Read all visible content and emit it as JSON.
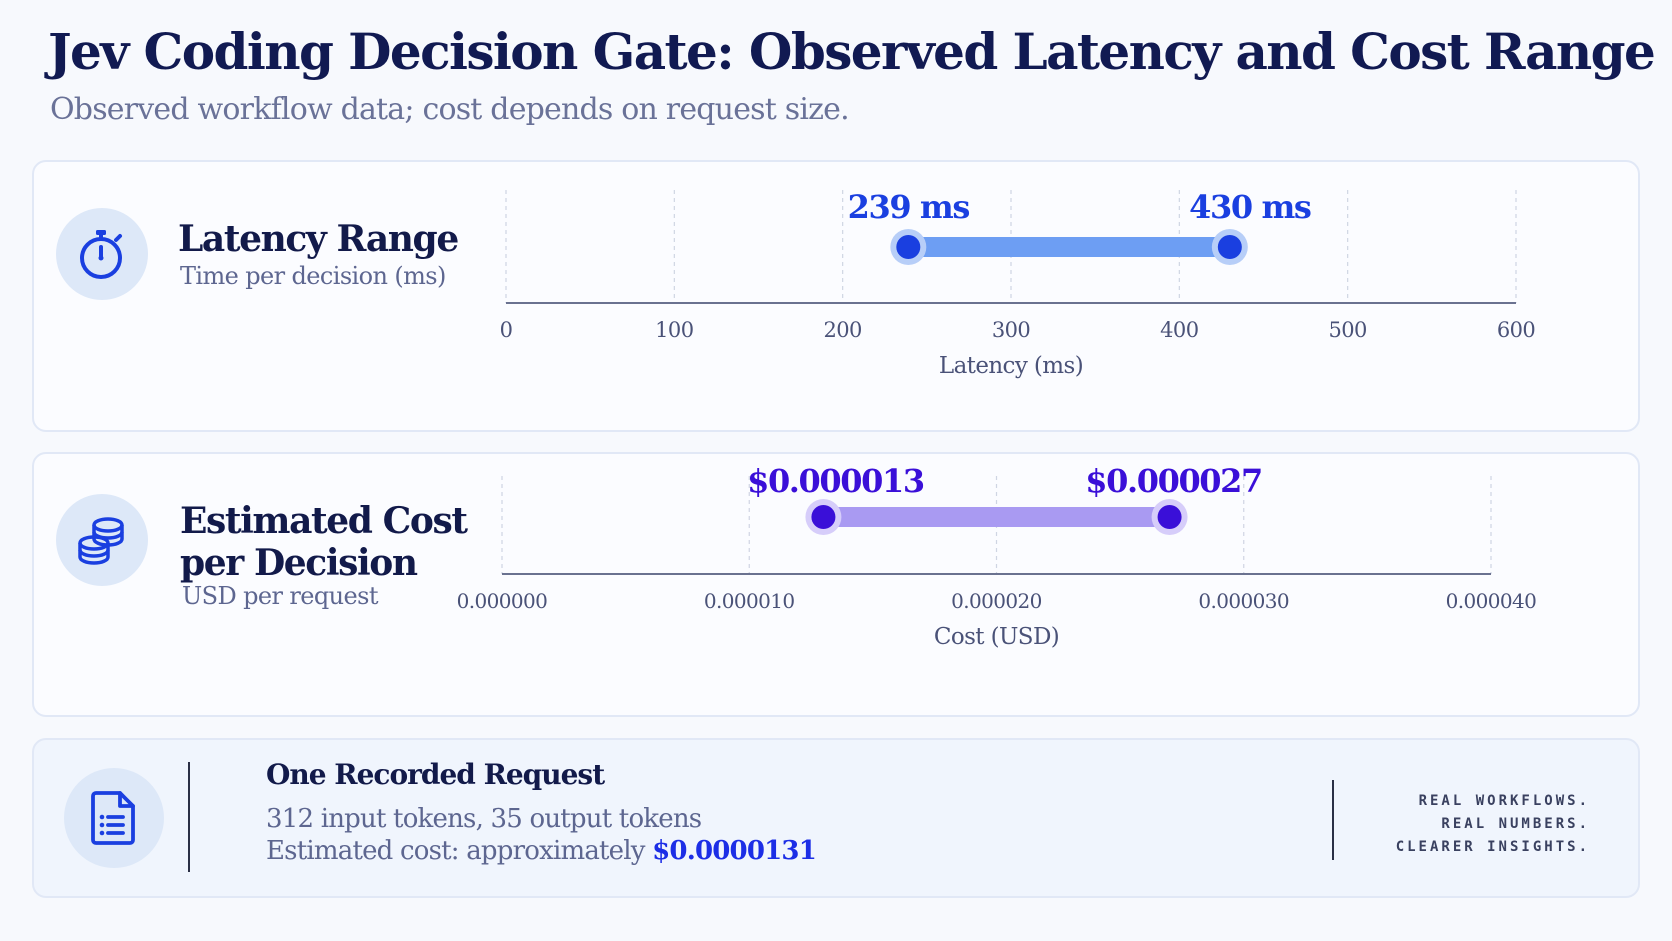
{
  "header": {
    "title": "Jev Coding Decision Gate: Observed Latency and Cost Range",
    "subtitle": "Observed workflow data; cost depends on request size."
  },
  "colors": {
    "navy": "#121a4a",
    "latency_accent": "#1a3fe0",
    "latency_bar": "#6d9ef3",
    "cost_accent": "#3a0fd8",
    "cost_bar": "#a99af2",
    "card_border": "#e1e8f6",
    "icon_bg": "#dde8f8"
  },
  "icons": {
    "latency": "stopwatch-icon",
    "cost": "coin-stack-icon",
    "request": "document-list-icon"
  },
  "latency": {
    "title": "Latency Range",
    "subtitle": "Time per decision (ms)"
  },
  "cost": {
    "title_line1": "Estimated Cost",
    "title_line2": "per Decision",
    "subtitle": "USD per request"
  },
  "request": {
    "title": "One Recorded Request",
    "tokens": "312 input tokens, 35 output tokens",
    "cost_prefix": "Estimated cost: approximately ",
    "cost_value": "$0.0000131",
    "tagline": [
      "REAL WORKFLOWS.",
      "REAL NUMBERS.",
      "CLEARER INSIGHTS."
    ]
  },
  "chart_data": [
    {
      "type": "range",
      "title": "Latency Range",
      "xlabel": "Latency (ms)",
      "xlim": [
        0,
        600
      ],
      "ticks": [
        0,
        100,
        200,
        300,
        400,
        500,
        600
      ],
      "tick_labels": [
        "0",
        "100",
        "200",
        "300",
        "400",
        "500",
        "600"
      ],
      "range": {
        "min": 239,
        "max": 430
      },
      "value_labels": [
        "239 ms",
        "430 ms"
      ],
      "grid": "vertical dashed"
    },
    {
      "type": "range",
      "title": "Estimated Cost per Decision",
      "xlabel": "Cost (USD)",
      "xlim": [
        0,
        4e-05
      ],
      "ticks": [
        0,
        1e-05,
        2e-05,
        3e-05,
        4e-05
      ],
      "tick_labels": [
        "0.000000",
        "0.000010",
        "0.000020",
        "0.000030",
        "0.000040"
      ],
      "range": {
        "min": 1.3e-05,
        "max": 2.7e-05
      },
      "value_labels": [
        "$0.000013",
        "$0.000027"
      ],
      "grid": "vertical dashed"
    }
  ]
}
